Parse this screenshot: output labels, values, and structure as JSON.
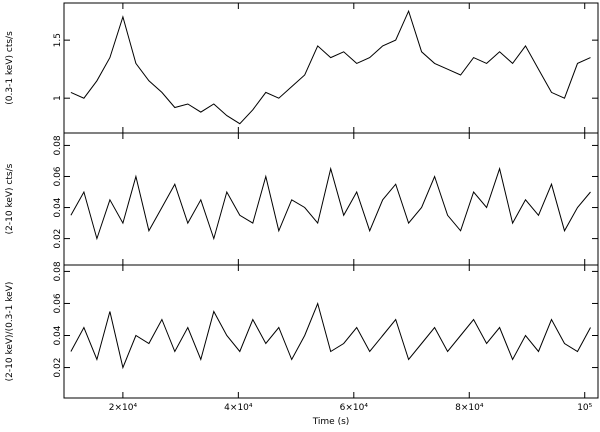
{
  "chart_data": [
    {
      "type": "line",
      "ylabel": "(0.3-1 keV) cts/s",
      "color": "#000000",
      "x": [
        11000,
        13250,
        15500,
        17750,
        20000,
        22250,
        24500,
        26750,
        29000,
        31250,
        33500,
        35750,
        38000,
        40250,
        42500,
        44750,
        47000,
        49250,
        51500,
        53750,
        56000,
        58250,
        60500,
        62750,
        65000,
        67250,
        69500,
        71750,
        74000,
        76250,
        78500,
        80750,
        83000,
        85250,
        87500,
        89750,
        92000,
        94250,
        96500,
        98750,
        101000
      ],
      "values": [
        1.05,
        1.0,
        1.15,
        1.35,
        1.7,
        1.3,
        1.15,
        1.05,
        0.92,
        0.95,
        0.88,
        0.95,
        0.85,
        0.78,
        0.9,
        1.05,
        1.0,
        1.1,
        1.2,
        1.45,
        1.35,
        1.4,
        1.3,
        1.35,
        1.45,
        1.5,
        1.75,
        1.4,
        1.3,
        1.25,
        1.2,
        1.35,
        1.3,
        1.4,
        1.3,
        1.45,
        1.25,
        1.05,
        1.0,
        1.3,
        1.35
      ],
      "xlim": [
        9800,
        102300
      ],
      "ylim": [
        0.7,
        1.82
      ],
      "yticks": [
        1,
        1.5
      ]
    },
    {
      "type": "line",
      "ylabel": "(2-10 keV) cts/s",
      "color": "#000000",
      "x": [
        11000,
        13250,
        15500,
        17750,
        20000,
        22250,
        24500,
        26750,
        29000,
        31250,
        33500,
        35750,
        38000,
        40250,
        42500,
        44750,
        47000,
        49250,
        51500,
        53750,
        56000,
        58250,
        60500,
        62750,
        65000,
        67250,
        69500,
        71750,
        74000,
        76250,
        78500,
        80750,
        83000,
        85250,
        87500,
        89750,
        92000,
        94250,
        96500,
        98750,
        101000
      ],
      "values": [
        0.035,
        0.05,
        0.02,
        0.045,
        0.03,
        0.06,
        0.025,
        0.04,
        0.055,
        0.03,
        0.045,
        0.02,
        0.05,
        0.035,
        0.03,
        0.06,
        0.025,
        0.045,
        0.04,
        0.03,
        0.065,
        0.035,
        0.05,
        0.025,
        0.045,
        0.055,
        0.03,
        0.04,
        0.06,
        0.035,
        0.025,
        0.05,
        0.04,
        0.065,
        0.03,
        0.045,
        0.035,
        0.055,
        0.025,
        0.04,
        0.05
      ],
      "xlim": [
        9800,
        102300
      ],
      "ylim": [
        0.003,
        0.088
      ],
      "yticks": [
        0.02,
        0.04,
        0.06,
        0.08
      ]
    },
    {
      "type": "line",
      "ylabel": "(2-10 keV)/(0.3-1 keV)",
      "xlabel": "Time (s)",
      "color": "#000000",
      "x": [
        11000,
        13250,
        15500,
        17750,
        20000,
        22250,
        24500,
        26750,
        29000,
        31250,
        33500,
        35750,
        38000,
        40250,
        42500,
        44750,
        47000,
        49250,
        51500,
        53750,
        56000,
        58250,
        60500,
        62750,
        65000,
        67250,
        69500,
        71750,
        74000,
        76250,
        78500,
        80750,
        83000,
        85250,
        87500,
        89750,
        92000,
        94250,
        96500,
        98750,
        101000
      ],
      "values": [
        0.03,
        0.045,
        0.025,
        0.055,
        0.02,
        0.04,
        0.035,
        0.05,
        0.03,
        0.045,
        0.025,
        0.055,
        0.04,
        0.03,
        0.05,
        0.035,
        0.045,
        0.025,
        0.04,
        0.06,
        0.03,
        0.035,
        0.045,
        0.03,
        0.04,
        0.05,
        0.025,
        0.035,
        0.045,
        0.03,
        0.04,
        0.05,
        0.035,
        0.045,
        0.025,
        0.04,
        0.03,
        0.05,
        0.035,
        0.03,
        0.045
      ],
      "xlim": [
        9800,
        102300
      ],
      "ylim": [
        0.001,
        0.084
      ],
      "yticks": [
        0.02,
        0.04,
        0.06,
        0.08
      ],
      "xticks": [
        {
          "value": 20000,
          "label": "2×10⁴"
        },
        {
          "value": 40000,
          "label": "4×10⁴"
        },
        {
          "value": 60000,
          "label": "6×10⁴"
        },
        {
          "value": 80000,
          "label": "8×10⁴"
        },
        {
          "value": 100000,
          "label": "10⁵"
        }
      ]
    }
  ]
}
